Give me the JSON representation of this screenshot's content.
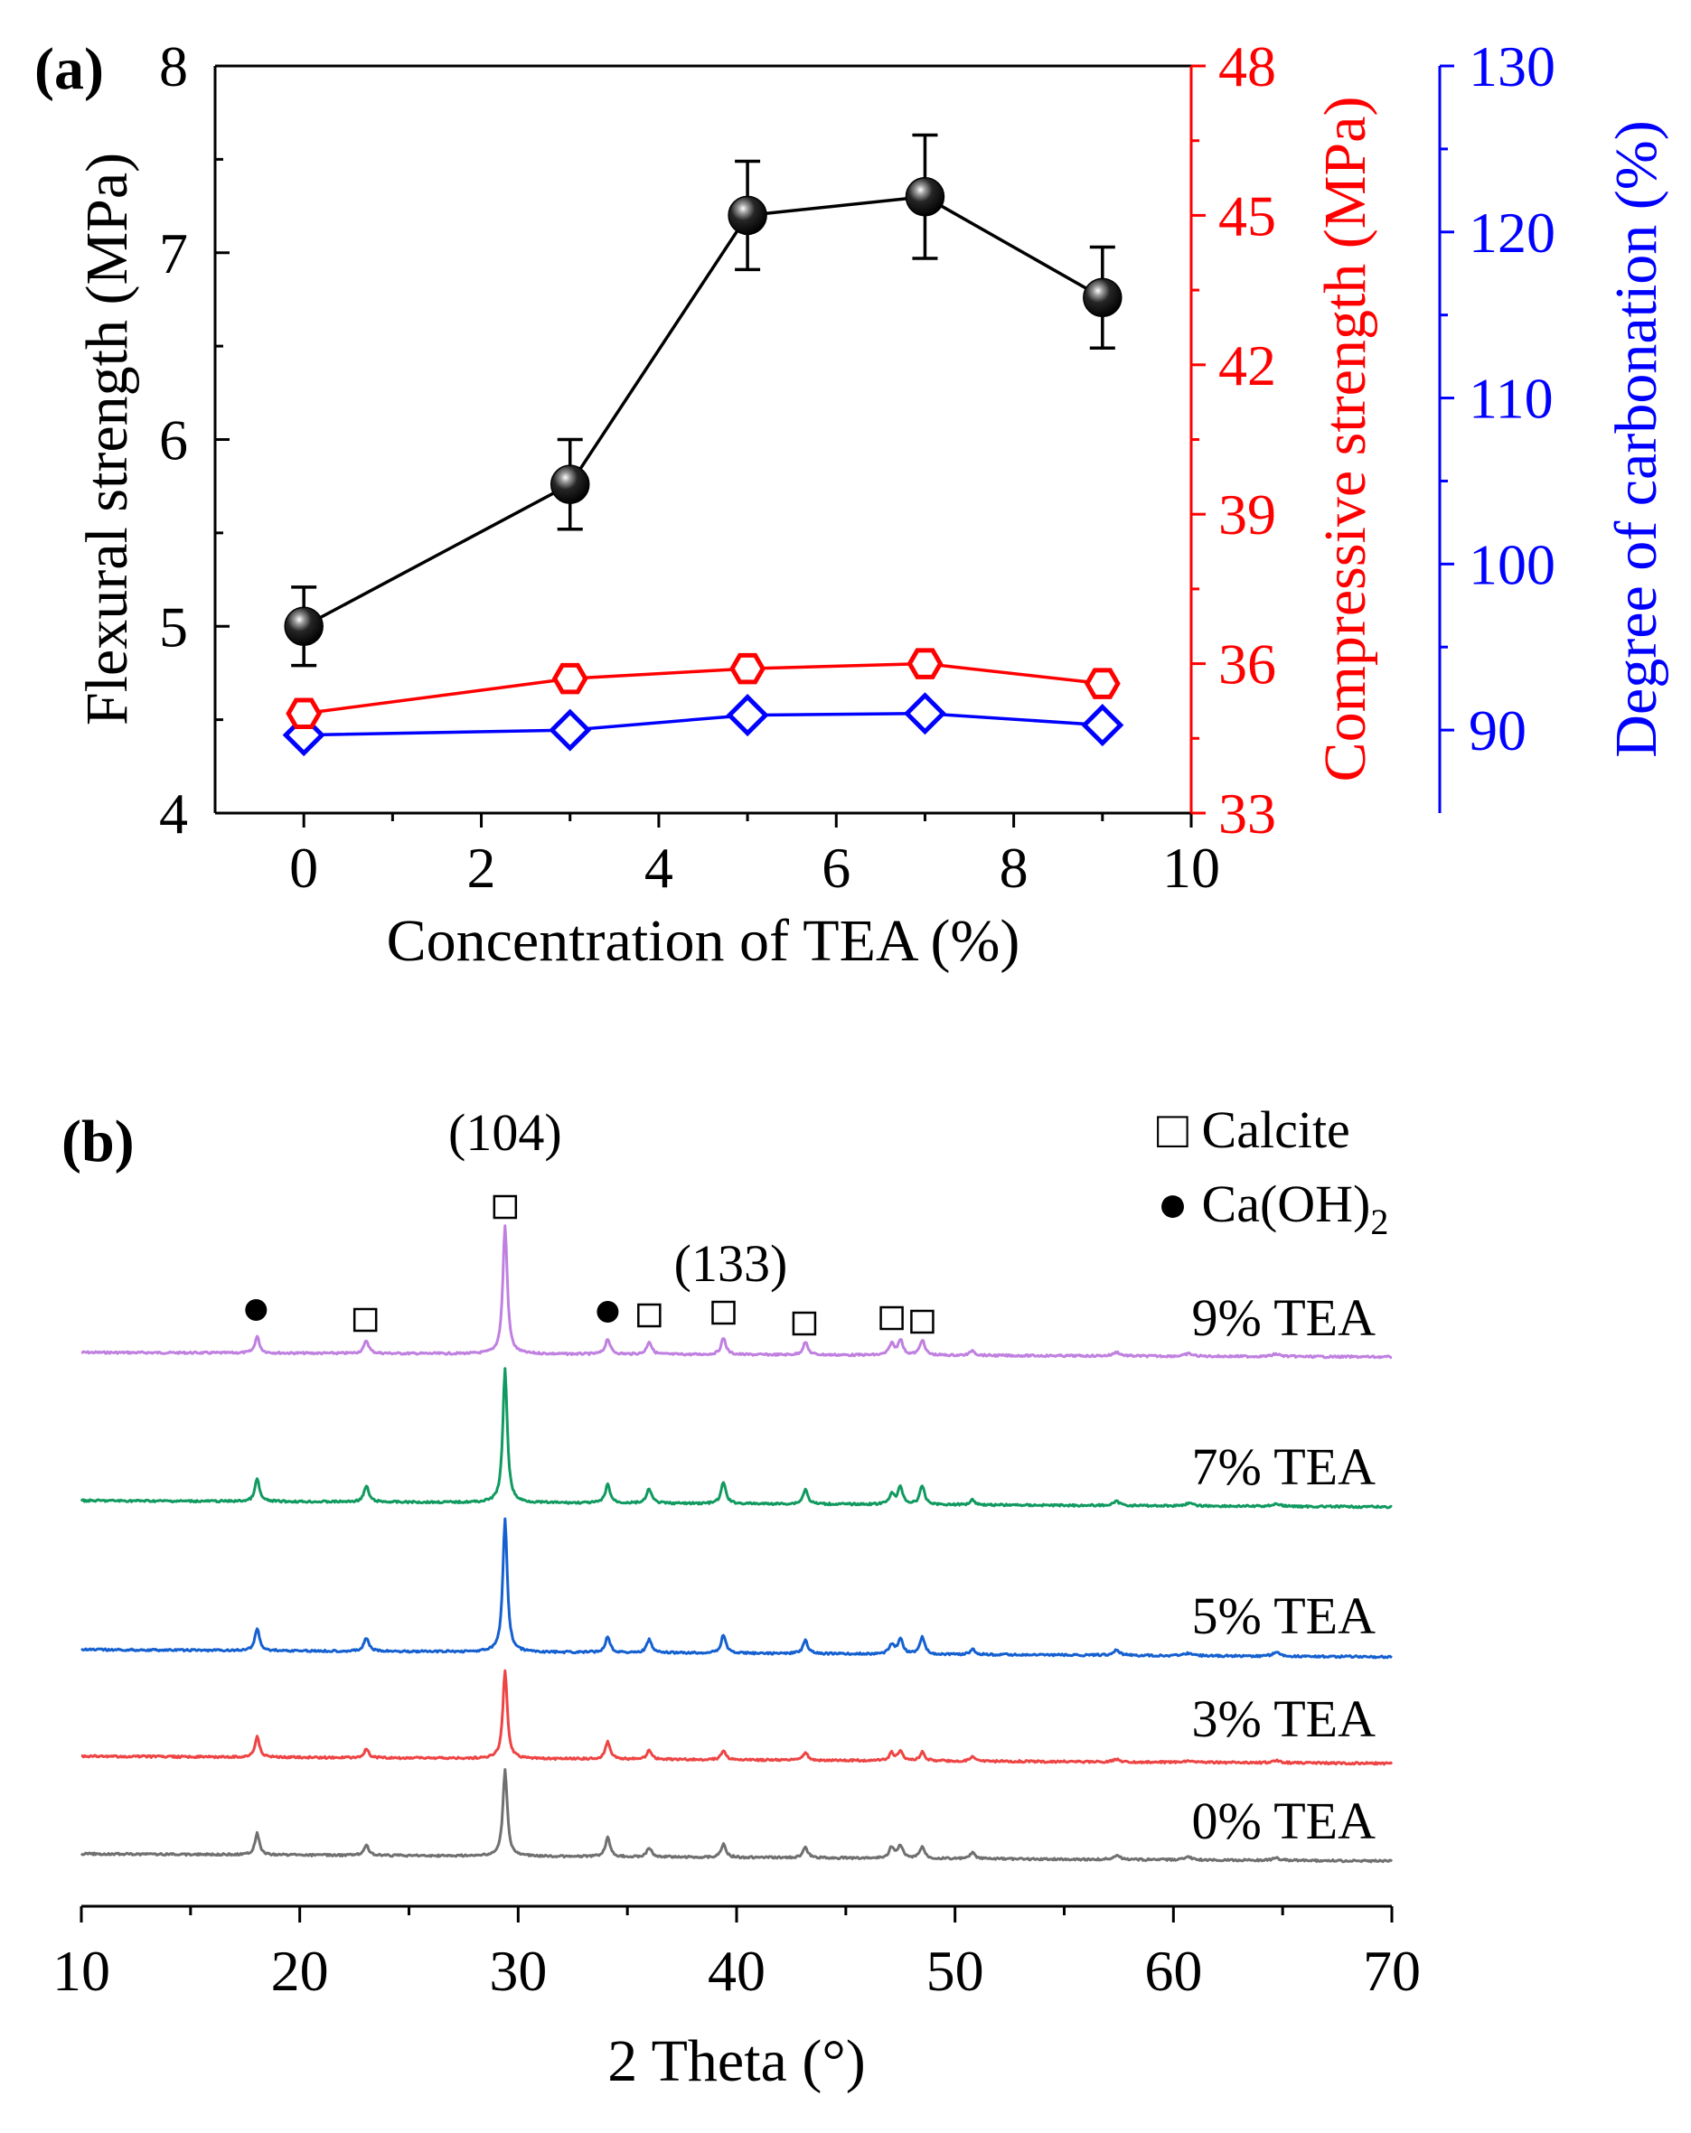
{
  "chart_data": [
    {
      "type": "line",
      "panel_label": "(a)",
      "xlabel": "Concentration of TEA (%)",
      "xlim": [
        -1,
        10
      ],
      "xticks": [
        "0",
        "2",
        "4",
        "6",
        "8",
        "10"
      ],
      "x": [
        0,
        3,
        5,
        7,
        9
      ],
      "axes": [
        {
          "id": "left",
          "label": "Flexural strength (MPa)",
          "color": "#000000",
          "ylim": [
            4,
            8
          ],
          "ticks": [
            "4",
            "5",
            "6",
            "7",
            "8"
          ]
        },
        {
          "id": "right",
          "label": "Compressive strength (MPa)",
          "color": "#ff0000",
          "ylim": [
            33,
            48
          ],
          "ticks": [
            "33",
            "36",
            "39",
            "42",
            "45",
            "48"
          ]
        },
        {
          "id": "offset",
          "label": "Degree of carbonation (%)",
          "color": "#0000ff",
          "ylim": [
            85,
            130
          ],
          "ticks": [
            "90",
            "100",
            "110",
            "120",
            "130"
          ]
        }
      ],
      "series": [
        {
          "name": "Flexural strength",
          "axis": "left",
          "marker": "sphere",
          "color": "#000000",
          "values": [
            5.0,
            5.76,
            7.2,
            7.3,
            6.76
          ],
          "errors": [
            0.21,
            0.24,
            0.29,
            0.33,
            0.27
          ]
        },
        {
          "name": "Compressive strength",
          "axis": "right",
          "marker": "hexagon",
          "color": "#ff0000",
          "values": [
            35.0,
            35.7,
            35.9,
            36.0,
            35.6
          ]
        },
        {
          "name": "Degree of carbonation",
          "axis": "offset",
          "marker": "diamond",
          "color": "#0000ff",
          "values": [
            89.7,
            90.0,
            90.9,
            91.0,
            90.3
          ]
        }
      ]
    },
    {
      "type": "line",
      "panel_label": "(b)",
      "xlabel": "2 Theta (°)",
      "xlim": [
        10,
        70
      ],
      "xticks": [
        "10",
        "20",
        "30",
        "40",
        "50",
        "60",
        "70"
      ],
      "legend": [
        {
          "symbol": "□",
          "label": "Calcite"
        },
        {
          "symbol": "●",
          "label": "Ca(OH)",
          "subscript": "2"
        }
      ],
      "peak_labels": [
        {
          "text": "(104)",
          "x": 29.4
        },
        {
          "text": "(133)",
          "x": 39.4
        }
      ],
      "markers": [
        {
          "phase": "Ca(OH)2",
          "x": 18.0
        },
        {
          "phase": "Calcite",
          "x": 23.0
        },
        {
          "phase": "Calcite",
          "x": 29.4
        },
        {
          "phase": "Ca(OH)2",
          "x": 34.1
        },
        {
          "phase": "Calcite",
          "x": 36.0
        },
        {
          "phase": "Calcite",
          "x": 39.4
        },
        {
          "phase": "Calcite",
          "x": 43.1
        },
        {
          "phase": "Calcite",
          "x": 47.1
        },
        {
          "phase": "Calcite",
          "x": 48.5
        }
      ],
      "peaks": [
        {
          "x": 18.05,
          "w": 0.12
        },
        {
          "x": 23.05,
          "w": 0.13
        },
        {
          "x": 29.4,
          "w": 0.12
        },
        {
          "x": 34.1,
          "w": 0.13
        },
        {
          "x": 36.0,
          "w": 0.13
        },
        {
          "x": 39.4,
          "w": 0.13
        },
        {
          "x": 43.15,
          "w": 0.13
        },
        {
          "x": 47.1,
          "w": 0.13
        },
        {
          "x": 47.5,
          "w": 0.13
        },
        {
          "x": 48.5,
          "w": 0.13
        },
        {
          "x": 50.8,
          "w": 0.13
        },
        {
          "x": 57.4,
          "w": 0.18
        },
        {
          "x": 60.7,
          "w": 0.2
        },
        {
          "x": 64.7,
          "w": 0.2
        }
      ],
      "series": [
        {
          "name": "9% TEA",
          "color": "#c080e0",
          "heights": [
            0.13,
            0.1,
            1.0,
            0.12,
            0.1,
            0.13,
            0.1,
            0.09,
            0.12,
            0.12,
            0.04,
            0.03,
            0.02,
            0.02
          ]
        },
        {
          "name": "7% TEA",
          "color": "#109a60",
          "heights": [
            0.17,
            0.12,
            1.0,
            0.14,
            0.11,
            0.16,
            0.11,
            0.08,
            0.13,
            0.14,
            0.04,
            0.03,
            0.02,
            0.02
          ]
        },
        {
          "name": "5% TEA",
          "color": "#1560d0",
          "heights": [
            0.17,
            0.1,
            1.0,
            0.12,
            0.1,
            0.14,
            0.1,
            0.07,
            0.12,
            0.13,
            0.04,
            0.04,
            0.02,
            0.03
          ]
        },
        {
          "name": "3% TEA",
          "color": "#ee4444",
          "heights": [
            0.24,
            0.1,
            1.0,
            0.2,
            0.1,
            0.1,
            0.09,
            0.09,
            0.1,
            0.1,
            0.05,
            0.03,
            0.02,
            0.03
          ]
        },
        {
          "name": "0% TEA",
          "color": "#707070",
          "heights": [
            0.25,
            0.12,
            1.0,
            0.22,
            0.11,
            0.15,
            0.12,
            0.13,
            0.15,
            0.14,
            0.07,
            0.05,
            0.03,
            0.03
          ]
        }
      ]
    }
  ]
}
